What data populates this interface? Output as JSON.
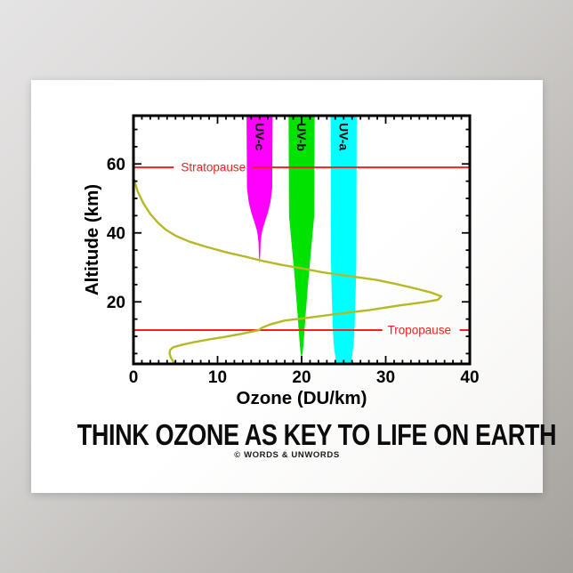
{
  "poster": {
    "title": "THINK OZONE AS KEY TO LIFE ON EARTH",
    "credit": "© WORDS & UNWORDS",
    "bg_color": "#ffffff"
  },
  "background": {
    "gradient": [
      "#e5e4e4",
      "#c2bfbc",
      "#a5a19b"
    ]
  },
  "chart_data": {
    "type": "area",
    "title": "",
    "xlabel": "Ozone (DU/km)",
    "ylabel": "Altitude (km)",
    "xlim": [
      0,
      40
    ],
    "ylim": [
      2,
      74
    ],
    "x_major_ticks": [
      0,
      10,
      20,
      30,
      40
    ],
    "x_minor_step": 1,
    "y_major_ticks": [
      20,
      40,
      60
    ],
    "y_minor_step": 5,
    "grid": false,
    "frame_color": "#000000",
    "text_color": "#000000",
    "colors": {
      "reference": "#ee2222",
      "curve": "#b5b926",
      "uv_c": "#ff00ff",
      "uv_b": "#00e300",
      "uv_a": "#00ffff"
    },
    "ozone_profile": {
      "name": "ozone-concentration-curve",
      "color": "#b5b926",
      "points": [
        [
          0,
          56
        ],
        [
          0.5,
          52
        ],
        [
          1.2,
          48.5
        ],
        [
          2,
          45.5
        ],
        [
          2.9,
          43
        ],
        [
          3.8,
          41
        ],
        [
          5,
          39.2
        ],
        [
          6.6,
          37.5
        ],
        [
          8.6,
          36
        ],
        [
          11,
          34.4
        ],
        [
          13.5,
          33
        ],
        [
          15.3,
          31.9
        ],
        [
          17.5,
          30.8
        ],
        [
          20.3,
          29.6
        ],
        [
          22.4,
          28.6
        ],
        [
          25,
          27.7
        ],
        [
          28.8,
          26.4
        ],
        [
          31,
          25.3
        ],
        [
          33.5,
          23.9
        ],
        [
          35.4,
          22.7
        ],
        [
          36.6,
          21.6
        ],
        [
          36.2,
          20.6
        ],
        [
          34.5,
          19.9
        ],
        [
          31.7,
          19
        ],
        [
          28,
          17.6
        ],
        [
          24.9,
          16.7
        ],
        [
          22,
          15.8
        ],
        [
          20.2,
          15.2
        ],
        [
          18,
          14.6
        ],
        [
          16.2,
          13.4
        ],
        [
          15.3,
          12.5
        ],
        [
          14.9,
          11.8
        ],
        [
          13.2,
          10.9
        ],
        [
          11,
          9.9
        ],
        [
          9,
          9.1
        ],
        [
          7.2,
          8.3
        ],
        [
          5.7,
          7.5
        ],
        [
          4.7,
          6.8
        ],
        [
          4.35,
          6
        ],
        [
          4.3,
          5
        ],
        [
          4.45,
          3.8
        ],
        [
          4.7,
          2.8
        ],
        [
          4.9,
          2.2
        ]
      ]
    },
    "uv_bands": [
      {
        "label": "UV-c",
        "color": "#ff00ff",
        "center_du": 15,
        "penetrates_to_km": 31.3,
        "profile_km_halfwidth": [
          [
            74,
            1.55
          ],
          [
            53,
            1.5
          ],
          [
            49,
            1.3
          ],
          [
            46,
            1.0
          ],
          [
            43,
            0.6
          ],
          [
            41,
            0.35
          ],
          [
            39,
            0.2
          ],
          [
            37,
            0.12
          ],
          [
            34,
            0.08
          ],
          [
            32.2,
            0.04
          ],
          [
            31.3,
            0
          ]
        ],
        "closed_bottom": false
      },
      {
        "label": "UV-b",
        "color": "#00e300",
        "center_du": 20,
        "penetrates_to_km": 3.6,
        "profile_km_halfwidth": [
          [
            74,
            1.55
          ],
          [
            45,
            1.5
          ],
          [
            41,
            1.35
          ],
          [
            37,
            1.2
          ],
          [
            33,
            1.05
          ],
          [
            29,
            0.9
          ],
          [
            25,
            0.76
          ],
          [
            21,
            0.63
          ],
          [
            17,
            0.5
          ],
          [
            13,
            0.38
          ],
          [
            9,
            0.26
          ],
          [
            5.5,
            0.14
          ],
          [
            3.6,
            0
          ]
        ],
        "closed_bottom": false
      },
      {
        "label": "UV-a",
        "color": "#00ffff",
        "center_du": 25,
        "penetrates_to_km": 2,
        "profile_km_halfwidth": [
          [
            74,
            1.55
          ],
          [
            31,
            1.5
          ],
          [
            25,
            1.45
          ],
          [
            19,
            1.38
          ],
          [
            13,
            1.3
          ],
          [
            9,
            1.22
          ],
          [
            6,
            1.1
          ],
          [
            3.5,
            0.95
          ],
          [
            2,
            0.88
          ]
        ],
        "closed_bottom": true
      }
    ],
    "reference_lines": [
      {
        "label": "Stratopause",
        "altitude_km": 59,
        "segments_du": [
          [
            0,
            4.8
          ],
          [
            14.1,
            40
          ]
        ],
        "label_du": 9.5
      },
      {
        "label": "Tropopause",
        "altitude_km": 11.8,
        "segments_du": [
          [
            0,
            29.6
          ],
          [
            38.8,
            40
          ]
        ],
        "label_du": 34
      }
    ],
    "legend": "none"
  }
}
